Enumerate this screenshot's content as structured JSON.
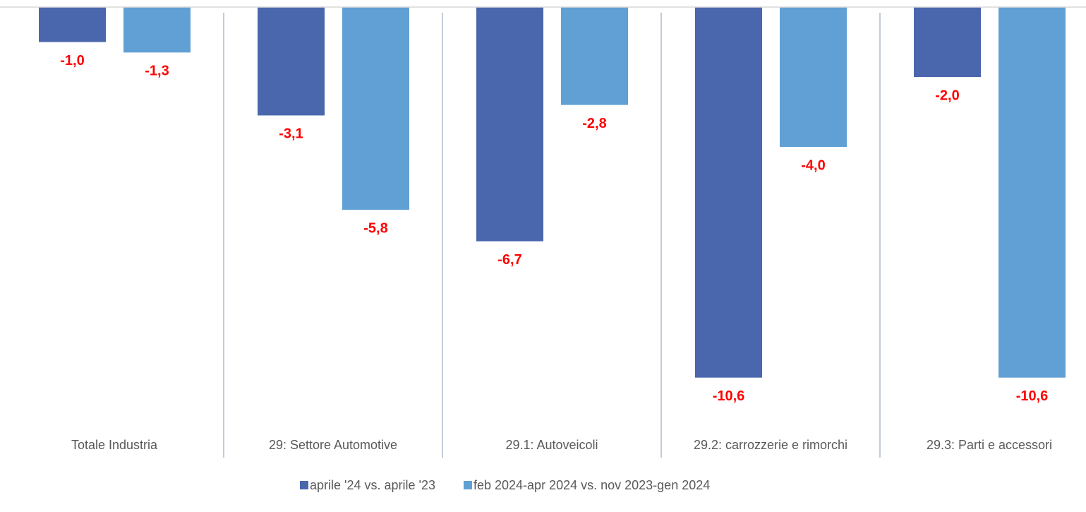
{
  "chart_data": {
    "type": "bar",
    "categories": [
      "Totale Industria",
      "29: Settore Automotive",
      "29.1: Autoveicoli",
      "29.2: carrozzerie e rimorchi",
      "29.3: Parti e accessori"
    ],
    "series": [
      {
        "name": "aprile '24 vs. aprile '23",
        "color": "#4a66ad",
        "values": [
          -1.0,
          -3.1,
          -6.7,
          -10.6,
          -2.0
        ],
        "value_labels": [
          "-1,0",
          "-3,1",
          "-6,7",
          "-10,6",
          "-2,0"
        ]
      },
      {
        "name": "feb 2024-apr 2024 vs. nov 2023-gen 2024",
        "color": "#61a0d4",
        "values": [
          -1.3,
          -5.8,
          -2.8,
          -4.0,
          -10.6
        ],
        "value_labels": [
          "-1,3",
          "-5,8",
          "-2,8",
          "-4,0",
          "-10,6"
        ]
      }
    ],
    "ylim": [
      -12,
      0
    ],
    "legend": "bottom"
  }
}
